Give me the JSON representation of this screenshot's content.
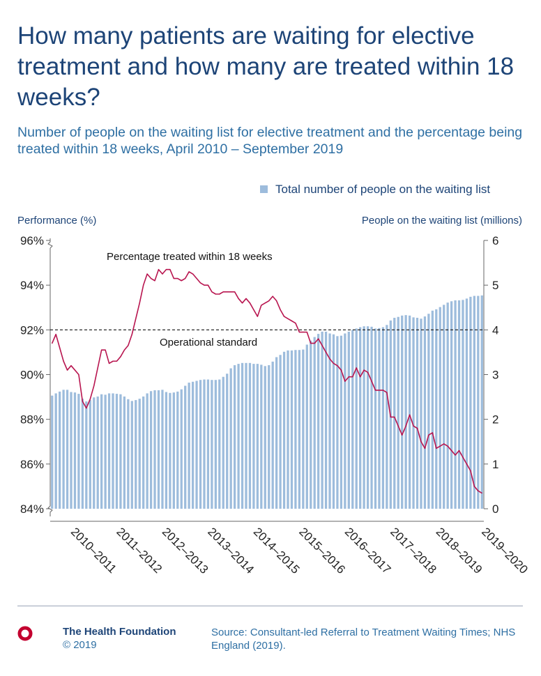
{
  "title": "How many patients are waiting for elective treatment and how many are treated within 18 weeks?",
  "subtitle": "Number of people on the waiting list for elective treatment and the percentage being treated within 18 weeks, April 2010 – September 2019",
  "chart_data": {
    "type": "bar+line",
    "legend": {
      "label": "Total number of people on the waiting list",
      "position": "top-right"
    },
    "y_left": {
      "label": "Performance (%)",
      "ylim": [
        84,
        96
      ],
      "ticks": [
        "84%",
        "86%",
        "88%",
        "90%",
        "92%",
        "94%",
        "96%"
      ],
      "tick_values": [
        84,
        86,
        88,
        90,
        92,
        94,
        96
      ]
    },
    "y_right": {
      "label": "People on the waiting list (millions)",
      "ylim": [
        0,
        6
      ],
      "ticks": [
        "0",
        "1",
        "2",
        "3",
        "4",
        "5",
        "6"
      ],
      "tick_values": [
        0,
        1,
        2,
        3,
        4,
        5,
        6
      ]
    },
    "x_categories": [
      "2010–2011",
      "2011–2012",
      "2012–2013",
      "2013–2014",
      "2014–2015",
      "2015–2016",
      "2016–2017",
      "2017–2018",
      "2018–2019",
      "2019–2020"
    ],
    "period": {
      "start": "April 2010",
      "end": "September 2019",
      "months": 114
    },
    "bars_series": {
      "name": "Total number of people on the waiting list",
      "unit": "millions",
      "color": "#9dbcdc",
      "values": [
        2.53,
        2.58,
        2.62,
        2.66,
        2.66,
        2.61,
        2.6,
        2.57,
        2.46,
        2.4,
        2.43,
        2.49,
        2.51,
        2.56,
        2.55,
        2.58,
        2.58,
        2.57,
        2.56,
        2.51,
        2.45,
        2.41,
        2.43,
        2.46,
        2.51,
        2.58,
        2.63,
        2.65,
        2.65,
        2.66,
        2.61,
        2.59,
        2.6,
        2.62,
        2.67,
        2.75,
        2.82,
        2.84,
        2.86,
        2.88,
        2.89,
        2.89,
        2.88,
        2.88,
        2.89,
        2.95,
        3.02,
        3.14,
        3.21,
        3.24,
        3.26,
        3.26,
        3.26,
        3.24,
        3.24,
        3.22,
        3.19,
        3.21,
        3.29,
        3.39,
        3.44,
        3.51,
        3.54,
        3.54,
        3.55,
        3.55,
        3.56,
        3.67,
        3.76,
        3.84,
        3.91,
        3.96,
        3.96,
        3.92,
        3.9,
        3.86,
        3.87,
        3.92,
        3.96,
        4.0,
        4.03,
        4.06,
        4.08,
        4.08,
        4.07,
        4.03,
        4.04,
        4.06,
        4.11,
        4.21,
        4.27,
        4.29,
        4.32,
        4.33,
        4.32,
        4.28,
        4.27,
        4.25,
        4.3,
        4.36,
        4.43,
        4.46,
        4.51,
        4.56,
        4.61,
        4.64,
        4.66,
        4.66,
        4.67,
        4.7,
        4.74,
        4.76,
        4.76,
        4.77
      ]
    },
    "line_series": {
      "name": "Percentage treated within 18 weeks",
      "unit": "%",
      "color": "#b8154f",
      "values": [
        91.4,
        91.8,
        91.2,
        90.6,
        90.2,
        90.4,
        90.2,
        90.0,
        88.8,
        88.5,
        88.9,
        89.5,
        90.3,
        91.1,
        91.1,
        90.5,
        90.6,
        90.6,
        90.8,
        91.1,
        91.3,
        91.8,
        92.5,
        93.2,
        94.0,
        94.5,
        94.3,
        94.2,
        94.7,
        94.5,
        94.7,
        94.7,
        94.3,
        94.3,
        94.2,
        94.3,
        94.6,
        94.5,
        94.3,
        94.1,
        94.0,
        94.0,
        93.7,
        93.6,
        93.6,
        93.7,
        93.7,
        93.7,
        93.7,
        93.4,
        93.2,
        93.4,
        93.2,
        92.9,
        92.6,
        93.1,
        93.2,
        93.3,
        93.5,
        93.3,
        92.9,
        92.6,
        92.5,
        92.4,
        92.3,
        91.9,
        91.9,
        91.9,
        91.4,
        91.4,
        91.6,
        91.3,
        91.0,
        90.7,
        90.5,
        90.4,
        90.2,
        89.7,
        89.9,
        89.9,
        90.3,
        89.9,
        90.2,
        90.1,
        89.7,
        89.3,
        89.3,
        89.3,
        89.2,
        88.1,
        88.1,
        87.7,
        87.3,
        87.7,
        88.2,
        87.7,
        87.6,
        87.0,
        86.7,
        87.3,
        87.4,
        86.7,
        86.8,
        86.9,
        86.8,
        86.6,
        86.4,
        86.6,
        86.3,
        86.0,
        85.7,
        85.0,
        84.8,
        84.7
      ]
    },
    "reference_line": {
      "label": "Operational standard",
      "value": 92,
      "style": "dashed"
    },
    "annotations": [
      {
        "text": "Percentage treated within 18 weeks"
      },
      {
        "text": "Operational standard"
      }
    ],
    "grid": false
  },
  "footer": {
    "organisation": "The Health Foundation",
    "copyright": "© 2019",
    "source": "Source: Consultant-led Referral to Treatment Waiting Times; NHS England (2019).",
    "brand_color": "#c3002f"
  }
}
